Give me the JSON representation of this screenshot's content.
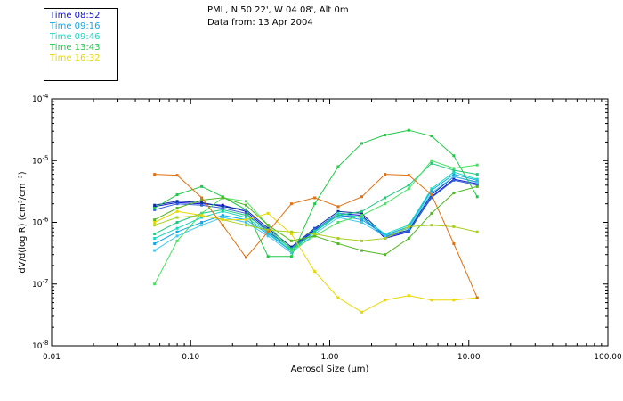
{
  "header": {
    "location": "PML, N 50 22', W 04 08', Alt 0m",
    "date": "Data from: 13 Apr 2004"
  },
  "chart_data": {
    "type": "line",
    "xlabel": "Aerosol Size (μm)",
    "ylabel": "dV/d(log R) (cm³/cm⁻³)",
    "xscale": "log",
    "yscale": "log",
    "xlim": [
      0.01,
      100
    ],
    "ylim": [
      1e-08,
      0.0001
    ],
    "xticks": [
      {
        "v": 0.01,
        "label": "0.01"
      },
      {
        "v": 0.1,
        "label": "0.10"
      },
      {
        "v": 1,
        "label": "1.00"
      },
      {
        "v": 10,
        "label": "10.00"
      },
      {
        "v": 100,
        "label": "100.00"
      }
    ],
    "yticks": [
      {
        "v": 1e-08,
        "base": "10",
        "exp": "-8"
      },
      {
        "v": 1e-07,
        "base": "10",
        "exp": "-7"
      },
      {
        "v": 1e-06,
        "base": "10",
        "exp": "-6"
      },
      {
        "v": 1e-05,
        "base": "10",
        "exp": "-5"
      },
      {
        "v": 0.0001,
        "base": "10",
        "exp": "-4"
      }
    ],
    "legend": [
      {
        "label": "Time 08:52",
        "color": "#1010d8"
      },
      {
        "label": "Time 09:16",
        "color": "#10a8e8"
      },
      {
        "label": "Time 09:46",
        "color": "#18d8c0"
      },
      {
        "label": "Time 13:43",
        "color": "#20c848"
      },
      {
        "label": "Time 16:32",
        "color": "#e8d800"
      }
    ],
    "x": [
      0.055,
      0.08,
      0.12,
      0.17,
      0.25,
      0.36,
      0.53,
      0.78,
      1.15,
      1.7,
      2.5,
      3.7,
      5.4,
      7.8,
      11.5
    ],
    "series": [
      {
        "color": "#1010d8",
        "values": [
          1.8e-06,
          2.1e-06,
          2e-06,
          1.9e-06,
          1.5e-06,
          7.5e-07,
          3.7e-07,
          7.5e-07,
          1.4e-06,
          1.3e-06,
          5.5e-07,
          7e-07,
          2.6e-06,
          5e-06,
          4.2e-06
        ]
      },
      {
        "color": "#0830a0",
        "values": [
          1.9e-06,
          2.2e-06,
          2.1e-06,
          1.8e-06,
          1.6e-06,
          8e-07,
          4e-07,
          8e-07,
          1.5e-06,
          1.4e-06,
          6e-07,
          7.5e-07,
          2.8e-06,
          5.5e-06,
          4.5e-06
        ]
      },
      {
        "color": "#3060d8",
        "values": [
          1.6e-06,
          2e-06,
          1.9e-06,
          1.7e-06,
          1.4e-06,
          7e-07,
          3.8e-07,
          7.8e-07,
          1.3e-06,
          1.2e-06,
          5.8e-07,
          7.2e-07,
          2.5e-06,
          4.8e-06,
          4e-06
        ]
      },
      {
        "color": "#10a8e8",
        "values": [
          4.5e-07,
          7e-07,
          1e-06,
          1.3e-06,
          1.1e-06,
          6.5e-07,
          3.4e-07,
          7e-07,
          1.3e-06,
          1.1e-06,
          6.2e-07,
          8.5e-07,
          3.3e-06,
          6e-06,
          4.8e-06
        ]
      },
      {
        "color": "#40c8f0",
        "values": [
          3.5e-07,
          6e-07,
          9e-07,
          1.2e-06,
          1e-06,
          6e-07,
          3.2e-07,
          6.5e-07,
          1.2e-06,
          1e-06,
          6e-07,
          8e-07,
          3e-06,
          5.5e-06,
          4.4e-06
        ]
      },
      {
        "color": "#18d8c0",
        "values": [
          5.5e-07,
          8e-07,
          1.2e-06,
          1.5e-06,
          1.2e-06,
          6.8e-07,
          3.5e-07,
          7.2e-07,
          1.4e-06,
          1.2e-06,
          6.5e-07,
          9e-07,
          3.5e-06,
          6.5e-06,
          5e-06
        ]
      },
      {
        "color": "#20c880",
        "values": [
          6.5e-07,
          1e-06,
          1.4e-06,
          1.6e-06,
          1.3e-06,
          7.5e-07,
          3.7e-07,
          7e-07,
          1.3e-06,
          1.5e-06,
          2.5e-06,
          4e-06,
          9e-06,
          7e-06,
          6e-06
        ]
      },
      {
        "color": "#48e060",
        "values": [
          1e-07,
          5e-07,
          1.4e-06,
          2.5e-06,
          2.2e-06,
          9e-07,
          3.5e-07,
          6e-07,
          1e-06,
          1.3e-06,
          2e-06,
          3.5e-06,
          1e-05,
          7.5e-06,
          8.5e-06
        ]
      },
      {
        "color": "#20c848",
        "values": [
          1.7e-06,
          2.8e-06,
          3.8e-06,
          2.6e-06,
          1.6e-06,
          2.8e-07,
          2.8e-07,
          2e-06,
          8e-06,
          1.9e-05,
          2.6e-05,
          3.1e-05,
          2.5e-05,
          1.2e-05,
          2.6e-06
        ]
      },
      {
        "color": "#50b820",
        "values": [
          1.1e-06,
          1.7e-06,
          2.3e-06,
          2.5e-06,
          1.9e-06,
          9e-07,
          5e-07,
          6e-07,
          4.5e-07,
          3.5e-07,
          3e-07,
          5.5e-07,
          1.4e-06,
          3e-06,
          3.8e-06
        ]
      },
      {
        "color": "#a8d020",
        "values": [
          9e-07,
          1.2e-06,
          1.3e-06,
          1.1e-06,
          9e-07,
          7.5e-07,
          7e-07,
          6.5e-07,
          5.5e-07,
          5e-07,
          5.5e-07,
          8.5e-07,
          9e-07,
          8.5e-07,
          7e-07
        ]
      },
      {
        "color": "#e8d800",
        "values": [
          1e-06,
          1.5e-06,
          1.3e-06,
          1.1e-06,
          1.1e-06,
          1.4e-06,
          6.5e-07,
          1.6e-07,
          6e-08,
          3.5e-08,
          5.5e-08,
          6.5e-08,
          5.5e-08,
          5.5e-08,
          6e-08
        ]
      },
      {
        "color": "#e07010",
        "values": [
          6e-06,
          5.8e-06,
          2.5e-06,
          9e-07,
          2.7e-07,
          7e-07,
          2e-06,
          2.5e-06,
          1.8e-06,
          2.6e-06,
          6e-06,
          5.8e-06,
          2.8e-06,
          4.5e-07,
          6e-08
        ]
      }
    ]
  }
}
